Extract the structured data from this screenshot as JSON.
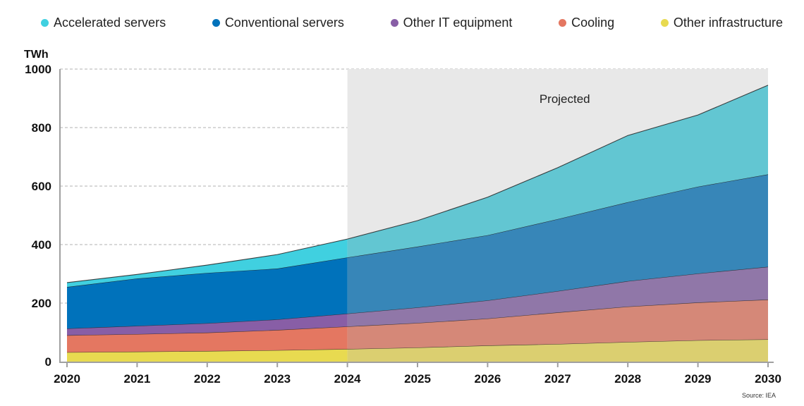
{
  "chart_data": {
    "type": "area",
    "stacked": true,
    "ylabel": "TWh",
    "ylim": [
      0,
      1000
    ],
    "yticks": [
      0,
      200,
      400,
      600,
      800,
      1000
    ],
    "x": [
      2020,
      2021,
      2022,
      2023,
      2024,
      2025,
      2026,
      2027,
      2028,
      2029,
      2030
    ],
    "xticks": [
      "2020",
      "2021",
      "2022",
      "2023",
      "2024",
      "2025",
      "2026",
      "2027",
      "2028",
      "2029",
      "2030"
    ],
    "projected_from": 2024,
    "projected_label": "Projected",
    "grid": "horizontal-dashed",
    "legend_position": "top",
    "source": "Source: IEA",
    "series": [
      {
        "name": "Other infrastructure",
        "color": "#e8da50",
        "projected_color": "#dbcf70",
        "values": [
          32,
          34,
          36,
          39,
          43,
          48,
          55,
          60,
          67,
          73,
          76
        ]
      },
      {
        "name": "Cooling",
        "color": "#e47761",
        "projected_color": "#d58878",
        "values": [
          58,
          60,
          63,
          69,
          77,
          84,
          92,
          108,
          121,
          129,
          136
        ]
      },
      {
        "name": "Other IT equipment",
        "color": "#885ea6",
        "projected_color": "#9077a8",
        "values": [
          23,
          28,
          32,
          36,
          44,
          53,
          62,
          73,
          87,
          99,
          112
        ]
      },
      {
        "name": "Conventional servers",
        "color": "#0072bb",
        "projected_color": "#3786b8",
        "values": [
          142,
          162,
          172,
          174,
          192,
          208,
          223,
          246,
          270,
          297,
          316
        ]
      },
      {
        "name": "Accelerated servers",
        "color": "#40d0e0",
        "projected_color": "#62c6d2",
        "values": [
          15,
          14,
          27,
          48,
          63,
          89,
          130,
          176,
          228,
          245,
          305
        ]
      }
    ],
    "legend_order": [
      "Accelerated servers",
      "Conventional servers",
      "Other IT equipment",
      "Cooling",
      "Other infrastructure"
    ]
  }
}
